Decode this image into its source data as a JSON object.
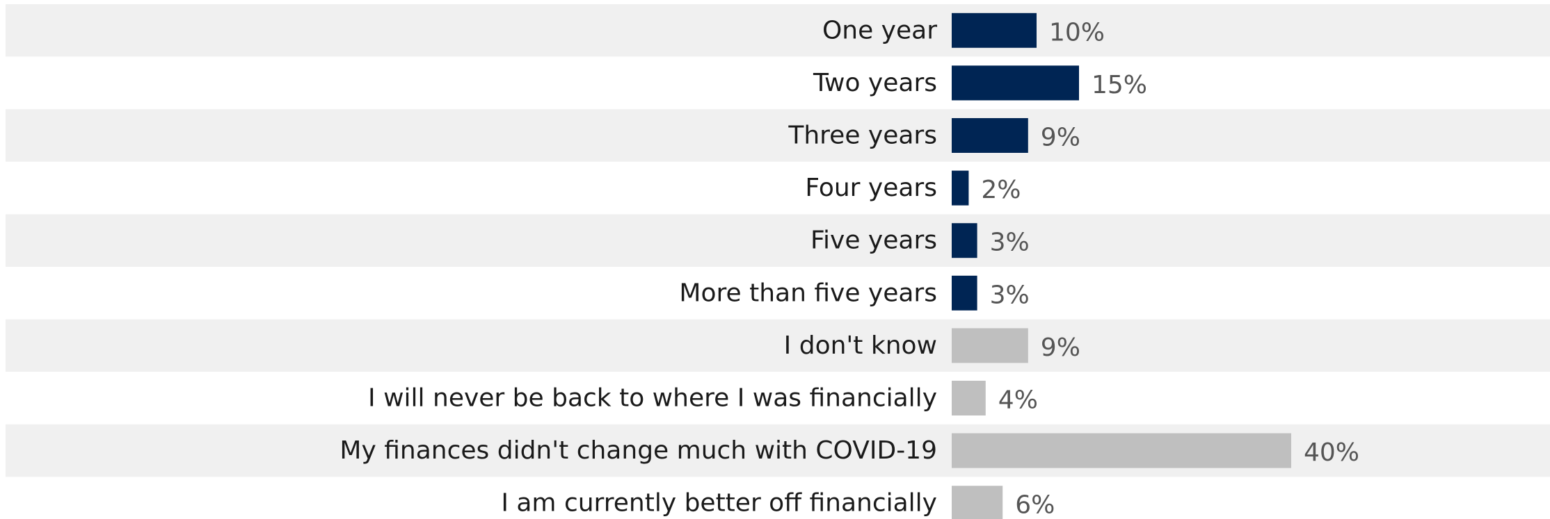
{
  "chart_data": {
    "type": "bar",
    "orientation": "horizontal",
    "categories": [
      "One year",
      "Two years",
      "Three years",
      "Four years",
      "Five years",
      "More than five years",
      "I don't know",
      "I will never be back to where I was financially",
      "My finances didn't change much with COVID-19",
      "I am currently better off financially"
    ],
    "values": [
      10,
      15,
      9,
      2,
      3,
      3,
      9,
      4,
      40,
      6
    ],
    "value_labels": [
      "10%",
      "15%",
      "9%",
      "2%",
      "3%",
      "3%",
      "9%",
      "4%",
      "40%",
      "6%"
    ],
    "bar_colors": [
      "#002554",
      "#002554",
      "#002554",
      "#002554",
      "#002554",
      "#002554",
      "#bfbfbf",
      "#bfbfbf",
      "#bfbfbf",
      "#bfbfbf"
    ],
    "row_band_colors": [
      "#f0f0f0",
      "#ffffff"
    ],
    "unit": "%",
    "xlim": [
      0,
      40
    ],
    "grid": false,
    "legend": "none",
    "title": "",
    "xlabel": "",
    "ylabel": ""
  }
}
